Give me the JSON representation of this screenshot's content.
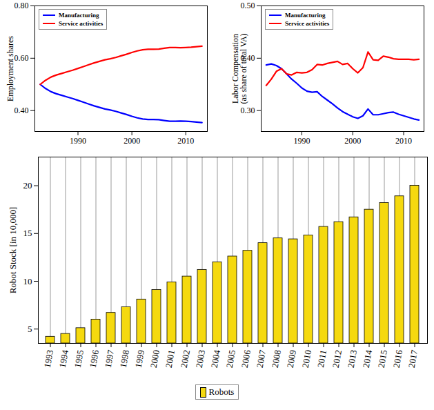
{
  "chart_data": [
    {
      "type": "line",
      "ylabel": "Employment shares",
      "x": [
        1983,
        1984,
        1985,
        1986,
        1987,
        1988,
        1989,
        1990,
        1991,
        1992,
        1993,
        1994,
        1995,
        1996,
        1997,
        1998,
        1999,
        2000,
        2001,
        2002,
        2003,
        2004,
        2005,
        2006,
        2007,
        2008,
        2009,
        2010,
        2011,
        2012,
        2013
      ],
      "series": [
        {
          "name": "Manufacturing",
          "color": "#0000ff",
          "values": [
            0.5,
            0.484,
            0.472,
            0.464,
            0.458,
            0.452,
            0.446,
            0.439,
            0.432,
            0.425,
            0.418,
            0.412,
            0.406,
            0.402,
            0.397,
            0.391,
            0.385,
            0.378,
            0.372,
            0.368,
            0.366,
            0.366,
            0.365,
            0.362,
            0.359,
            0.359,
            0.36,
            0.359,
            0.358,
            0.356,
            0.354
          ]
        },
        {
          "name": "Service activities",
          "color": "#ff0000",
          "values": [
            0.5,
            0.516,
            0.528,
            0.536,
            0.542,
            0.548,
            0.554,
            0.561,
            0.568,
            0.575,
            0.582,
            0.588,
            0.594,
            0.598,
            0.603,
            0.609,
            0.615,
            0.622,
            0.628,
            0.632,
            0.634,
            0.634,
            0.635,
            0.638,
            0.641,
            0.641,
            0.64,
            0.641,
            0.642,
            0.644,
            0.646
          ]
        }
      ],
      "xlim": [
        1982,
        2014
      ],
      "xticks": [
        1990,
        2000,
        2010
      ],
      "ylim": [
        0.32,
        0.8
      ],
      "yticks": [
        0.4,
        0.6,
        0.8
      ],
      "grid": false,
      "legend": "upper left"
    },
    {
      "type": "line",
      "ylabel": "Labor Compensation\n(as share of total VA)",
      "x": [
        1983,
        1984,
        1985,
        1986,
        1987,
        1988,
        1989,
        1990,
        1991,
        1992,
        1993,
        1994,
        1995,
        1996,
        1997,
        1998,
        1999,
        2000,
        2001,
        2002,
        2003,
        2004,
        2005,
        2006,
        2007,
        2008,
        2009,
        2010,
        2011,
        2012,
        2013
      ],
      "series": [
        {
          "name": "Manufacturing",
          "color": "#0000ff",
          "values": [
            0.387,
            0.389,
            0.386,
            0.38,
            0.37,
            0.36,
            0.352,
            0.343,
            0.337,
            0.335,
            0.336,
            0.327,
            0.32,
            0.313,
            0.305,
            0.298,
            0.293,
            0.288,
            0.285,
            0.29,
            0.303,
            0.292,
            0.292,
            0.294,
            0.296,
            0.297,
            0.293,
            0.29,
            0.287,
            0.284,
            0.282
          ]
        },
        {
          "name": "Service activities",
          "color": "#ff0000",
          "values": [
            0.348,
            0.36,
            0.375,
            0.38,
            0.37,
            0.368,
            0.373,
            0.372,
            0.373,
            0.378,
            0.388,
            0.387,
            0.39,
            0.392,
            0.394,
            0.388,
            0.39,
            0.38,
            0.372,
            0.382,
            0.412,
            0.397,
            0.396,
            0.404,
            0.402,
            0.399,
            0.398,
            0.398,
            0.398,
            0.397,
            0.398
          ]
        }
      ],
      "xlim": [
        1982,
        2014
      ],
      "xticks": [
        1990,
        2000,
        2010
      ],
      "ylim": [
        0.26,
        0.5
      ],
      "yticks": [
        0.3,
        0.4,
        0.5
      ],
      "grid": false,
      "legend": "upper left"
    },
    {
      "type": "bar",
      "ylabel": "Robot Stock [in 10,000]",
      "categories": [
        "1993",
        "1994",
        "1995",
        "1996",
        "1997",
        "1998",
        "1999",
        "2000",
        "2001",
        "2002",
        "2003",
        "2004",
        "2005",
        "2006",
        "2007",
        "2008",
        "2009",
        "2010",
        "2011",
        "2012",
        "2013",
        "2014",
        "2015",
        "2016",
        "2017"
      ],
      "series": [
        {
          "name": "Robots",
          "color": "#f5d90f",
          "values": [
            4.2,
            4.5,
            5.1,
            6.0,
            6.7,
            7.3,
            8.1,
            9.1,
            9.9,
            10.5,
            11.2,
            12.0,
            12.6,
            13.2,
            14.0,
            14.5,
            14.4,
            14.8,
            15.7,
            16.2,
            16.7,
            17.5,
            18.2,
            18.9,
            20.0
          ]
        }
      ],
      "ylim": [
        3.5,
        23
      ],
      "yticks": [
        5,
        10,
        15,
        20
      ],
      "grid": true,
      "legend": "bottom"
    }
  ]
}
